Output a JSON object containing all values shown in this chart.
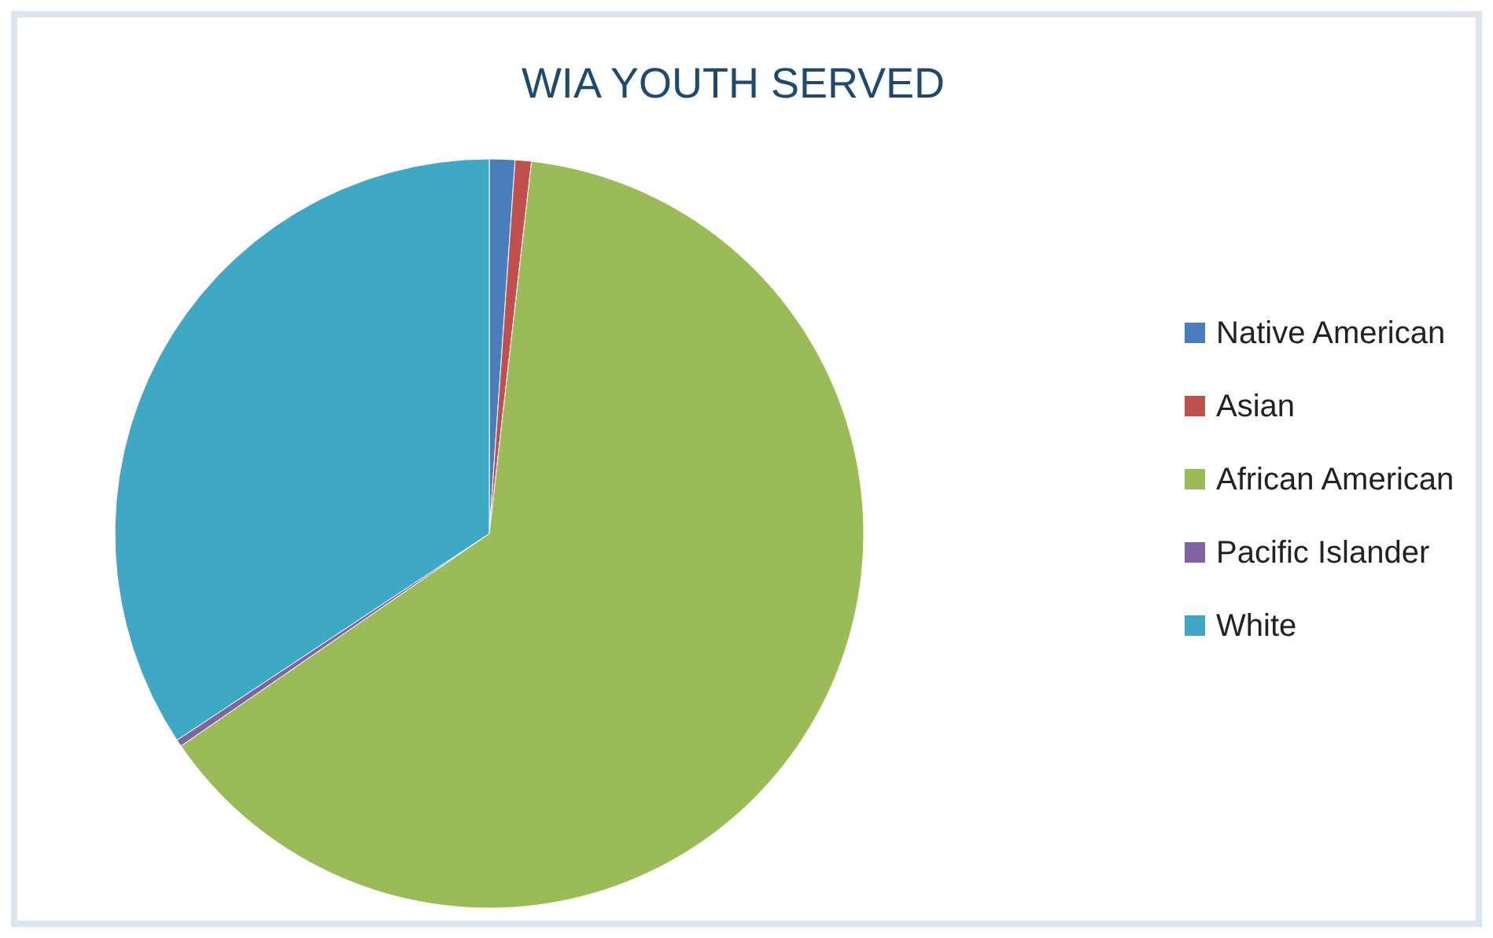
{
  "chart_data": {
    "type": "pie",
    "title": "WIA YOUTH SERVED",
    "categories": [
      "Native American",
      "Asian",
      "African American",
      "Pacific Islander",
      "White"
    ],
    "values": [
      1.1,
      0.7,
      63.6,
      0.3,
      34.3
    ],
    "colors": [
      "#4a7ebb",
      "#c0504d",
      "#9bbb59",
      "#8064a2",
      "#3fa9c5"
    ],
    "legend": "right"
  }
}
